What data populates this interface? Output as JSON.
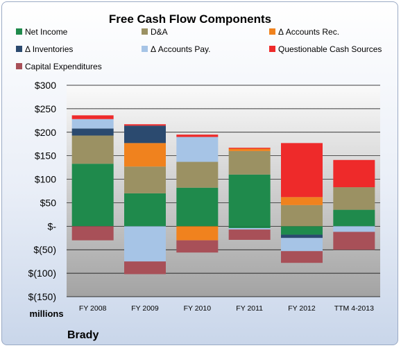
{
  "chart_data": {
    "type": "bar",
    "stacked": true,
    "title": "Free Cash Flow Components",
    "unit_label": "millions",
    "company": "Brady",
    "categories": [
      "FY 2008",
      "FY 2009",
      "FY 2010",
      "FY 2011",
      "FY 2012",
      "TTM 4-2013"
    ],
    "ylim": [
      -150,
      300
    ],
    "yticks": [
      300,
      250,
      200,
      150,
      100,
      50,
      0,
      -50,
      -100,
      -150
    ],
    "ytick_labels": [
      "$300",
      "$250",
      "$200",
      "$150",
      "$100",
      "$50",
      "$-",
      "$(50)",
      "$(100)",
      "$(150)"
    ],
    "grid": true,
    "legend_position": "top",
    "series": [
      {
        "name": "Net Income",
        "color": "#1f8a4c",
        "values": [
          133,
          70,
          82,
          110,
          -18,
          35
        ]
      },
      {
        "name": "D&A",
        "color": "#9b9163",
        "values": [
          60,
          57,
          55,
          50,
          45,
          48
        ]
      },
      {
        "name": "Δ Accounts Rec.",
        "color": "#f0821e",
        "values": [
          0,
          50,
          0,
          5,
          17,
          0
        ]
      },
      {
        "name": "Δ Inventories",
        "color": "#2b4a6f",
        "values": [
          15,
          37,
          0,
          0,
          -7,
          0
        ]
      },
      {
        "name": "Δ Accounts Pay.",
        "color": "#a6c4e6",
        "values": [
          20,
          0,
          53,
          0,
          -28,
          -12
        ]
      },
      {
        "name": "Questionable Cash Sources",
        "color": "#ee2a2a",
        "values": [
          8,
          3,
          5,
          2,
          115,
          58
        ]
      },
      {
        "name": "Capital Expenditures",
        "color": "#a85058",
        "values": [
          -30,
          -27,
          -26,
          -22,
          -25,
          -38
        ]
      }
    ],
    "negative_extras": [
      {
        "series": "Net Income",
        "values": [
          0,
          0,
          0,
          -4,
          0,
          0
        ]
      },
      {
        "series": "Δ Accounts Rec.",
        "values": [
          0,
          0,
          -30,
          0,
          0,
          0
        ]
      },
      {
        "series": "Δ Accounts Pay.",
        "values": [
          0,
          -75,
          0,
          -3,
          0,
          0
        ]
      }
    ]
  }
}
